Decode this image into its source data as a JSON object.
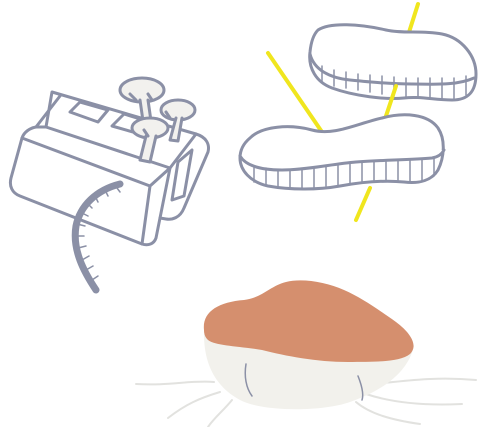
{
  "palette": {
    "background": "#ffffff",
    "outline": "#8b90a6",
    "mushroom_fill": "#f2f1ee",
    "skewer": "#f0e61e",
    "glaze": "#d58f6e",
    "cup": "#f2f1ec",
    "roots": "#e2e2df"
  },
  "illustrations": [
    {
      "name": "mushroom-grow-block-illustration"
    },
    {
      "name": "mushroom-steak-skewer-illustration"
    },
    {
      "name": "glazed-mushroom-cup-illustration"
    }
  ]
}
